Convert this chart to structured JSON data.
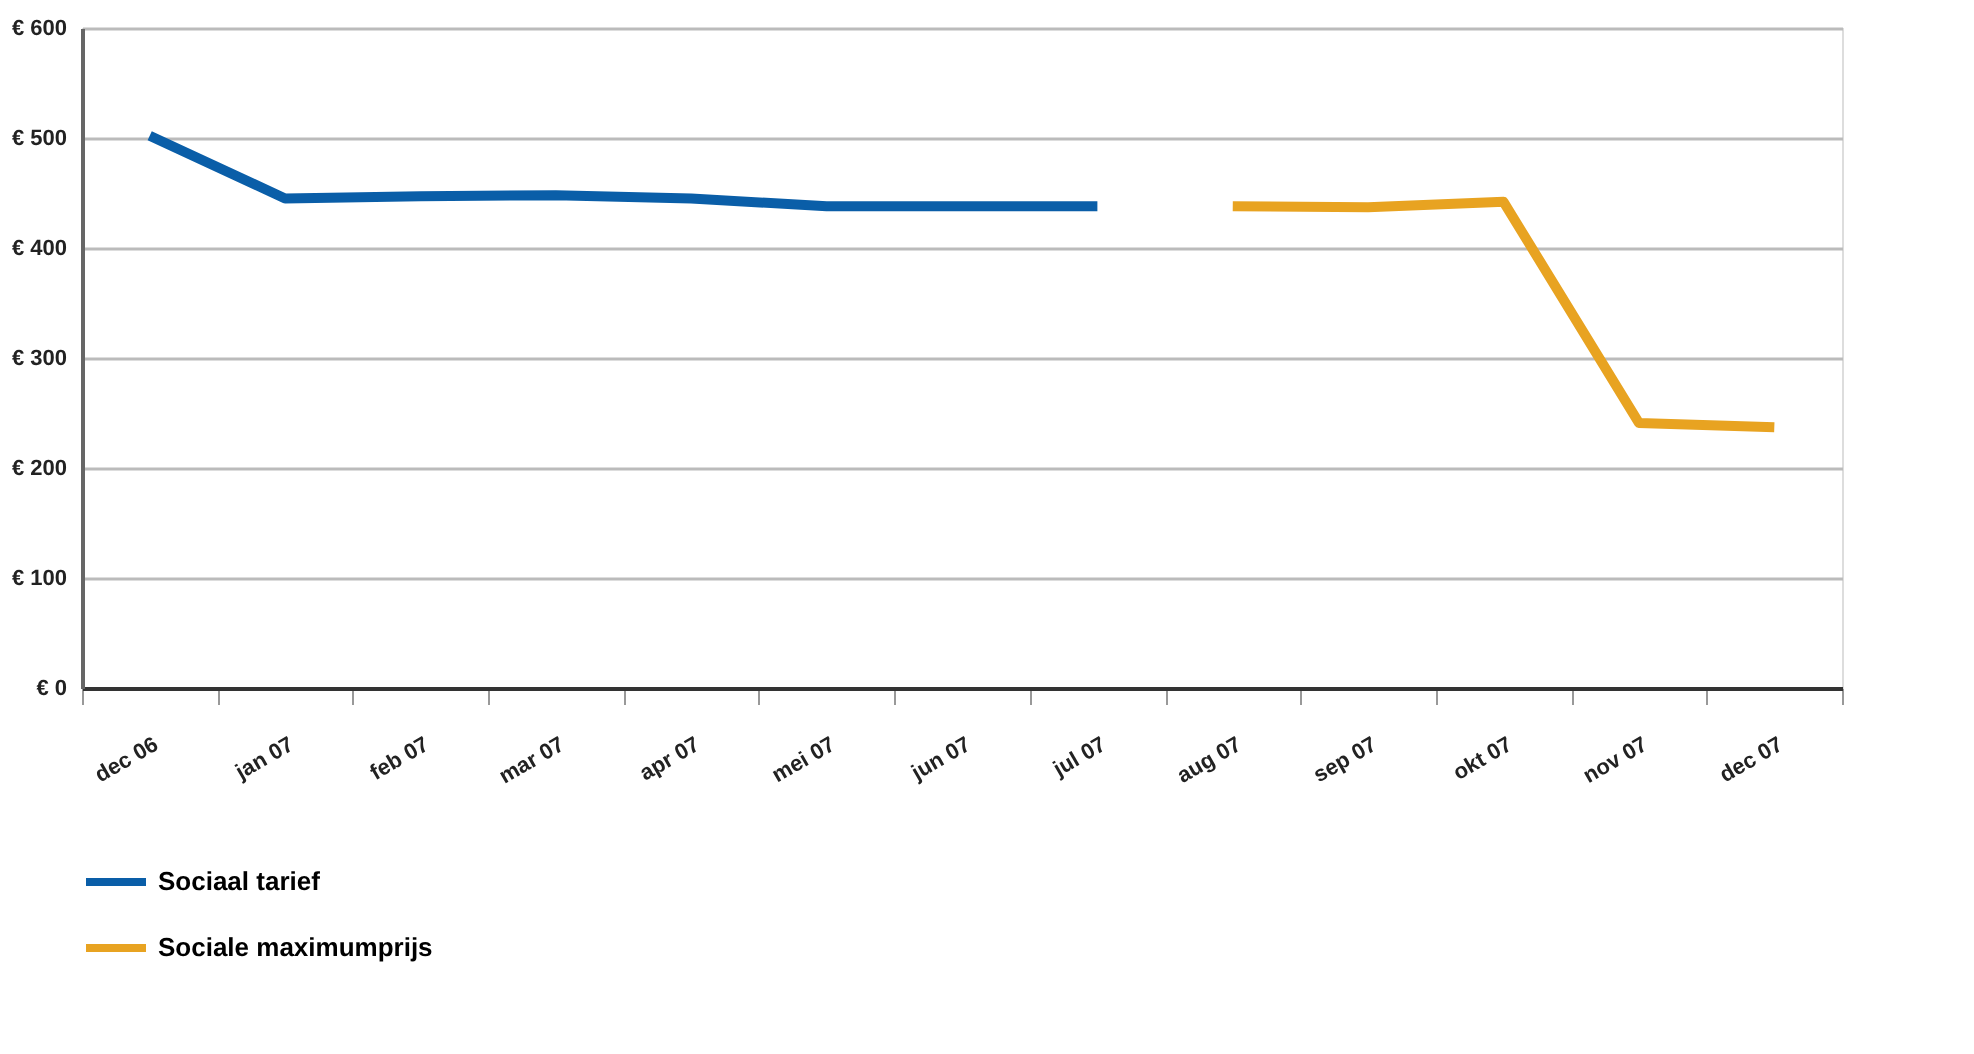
{
  "chart_data": {
    "type": "line",
    "categories": [
      "dec 06",
      "jan 07",
      "feb 07",
      "mar 07",
      "apr 07",
      "mei 07",
      "jun 07",
      "jul 07",
      "aug 07",
      "sep 07",
      "okt 07",
      "nov 07",
      "dec 07"
    ],
    "series": [
      {
        "name": "Sociaal tarief",
        "color": "#0a5ea8",
        "values": [
          502,
          445,
          447,
          448,
          445,
          438,
          438,
          438,
          null,
          null,
          null,
          null,
          null
        ]
      },
      {
        "name": "Sociale maximumprijs",
        "color": "#e8a321",
        "values": [
          null,
          null,
          null,
          null,
          null,
          null,
          null,
          null,
          438,
          437,
          442,
          241,
          237
        ]
      }
    ],
    "ylim": [
      0,
      600
    ],
    "yticks": [
      {
        "value": 0,
        "label": "€ 0"
      },
      {
        "value": 100,
        "label": "€ 100"
      },
      {
        "value": 200,
        "label": "€ 200"
      },
      {
        "value": 300,
        "label": "€ 300"
      },
      {
        "value": 400,
        "label": "€ 400"
      },
      {
        "value": 500,
        "label": "€ 500"
      },
      {
        "value": 600,
        "label": "€ 600"
      }
    ],
    "grid": "y",
    "legend": "bottom left",
    "marker": "none",
    "line_style": "solid"
  }
}
